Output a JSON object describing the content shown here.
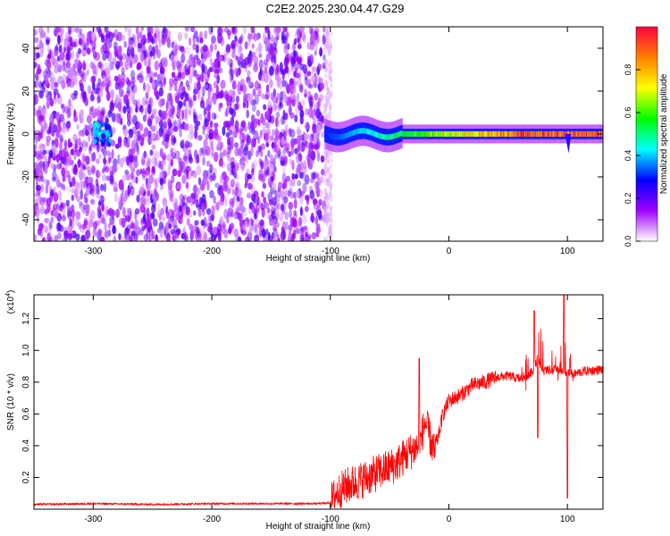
{
  "figure": {
    "title": "C2E2.2025.230.04.47.G29"
  },
  "chart_data": [
    {
      "type": "heatmap",
      "xlabel": "Height of straight line (km)",
      "ylabel": "Frequency (Hz)",
      "xlim": [
        -350,
        130
      ],
      "ylim": [
        -50,
        50
      ],
      "xticks": [
        "-300",
        "-200",
        "-100",
        "0",
        "100"
      ],
      "yticks": [
        "-40",
        "-20",
        "0",
        "20",
        "40"
      ],
      "grid": false,
      "colorbar": {
        "label": "Normalized spectral amplitude",
        "range": [
          0,
          1
        ],
        "ticks": [
          "0.0",
          "0.2",
          "0.4",
          "0.6",
          "0.8"
        ],
        "colormap": [
          "#ffffff",
          "#a000ff",
          "#0000ff",
          "#00ffff",
          "#00ff00",
          "#ffff00",
          "#ff8000",
          "#ff0040"
        ]
      },
      "regions": [
        {
          "x": [
            -350,
            -105
          ],
          "frequency_range": [
            -50,
            50
          ],
          "amplitude": 0.15,
          "description_value": "noise"
        },
        {
          "x": [
            -300,
            -285
          ],
          "frequency_center": 0,
          "amplitude": 0.35
        },
        {
          "x": [
            -105,
            130
          ],
          "frequency_center": 0,
          "frequency_halfwidth": 4,
          "amplitude_range": [
            0.3,
            1.0
          ]
        }
      ]
    },
    {
      "type": "line",
      "xlabel": "Height of straight line (km)",
      "ylabel": "SNR (10 * v/v)",
      "ylabel_exponent": "(x10",
      "ylabel_exponent_power": "4",
      "xlim": [
        -350,
        130
      ],
      "ylim": [
        0,
        1.35
      ],
      "xticks": [
        "-300",
        "-200",
        "-100",
        "0",
        "100"
      ],
      "yticks": [
        "0.2",
        "0.4",
        "0.6",
        "0.8",
        "1.0",
        "1.2"
      ],
      "line_color": "#ff0000",
      "series": [
        {
          "x": [
            -350,
            -300,
            -250,
            -200,
            -150,
            -110,
            -100,
            -95,
            -85,
            -75,
            -60,
            -45,
            -35,
            -25,
            -20,
            -12,
            -5,
            0,
            10,
            20,
            30,
            40,
            50,
            60,
            70,
            75,
            80,
            90,
            95,
            100,
            105,
            115,
            130
          ],
          "values": [
            0.03,
            0.035,
            0.03,
            0.035,
            0.035,
            0.035,
            0.04,
            0.1,
            0.15,
            0.18,
            0.23,
            0.28,
            0.35,
            0.4,
            0.55,
            0.35,
            0.6,
            0.68,
            0.72,
            0.78,
            0.8,
            0.83,
            0.84,
            0.82,
            0.86,
            0.95,
            0.87,
            0.88,
            0.86,
            0.87,
            0.85,
            0.87,
            0.88
          ]
        }
      ],
      "annotations": {
        "spikes_max": [
          {
            "x": -25,
            "y": 0.95
          },
          {
            "x": 72,
            "y": 1.25
          },
          {
            "x": 97,
            "y": 1.35
          }
        ],
        "spikes_min": [
          {
            "x": 100,
            "y": 0.07
          },
          {
            "x": 75,
            "y": 0.45
          }
        ]
      }
    }
  ]
}
